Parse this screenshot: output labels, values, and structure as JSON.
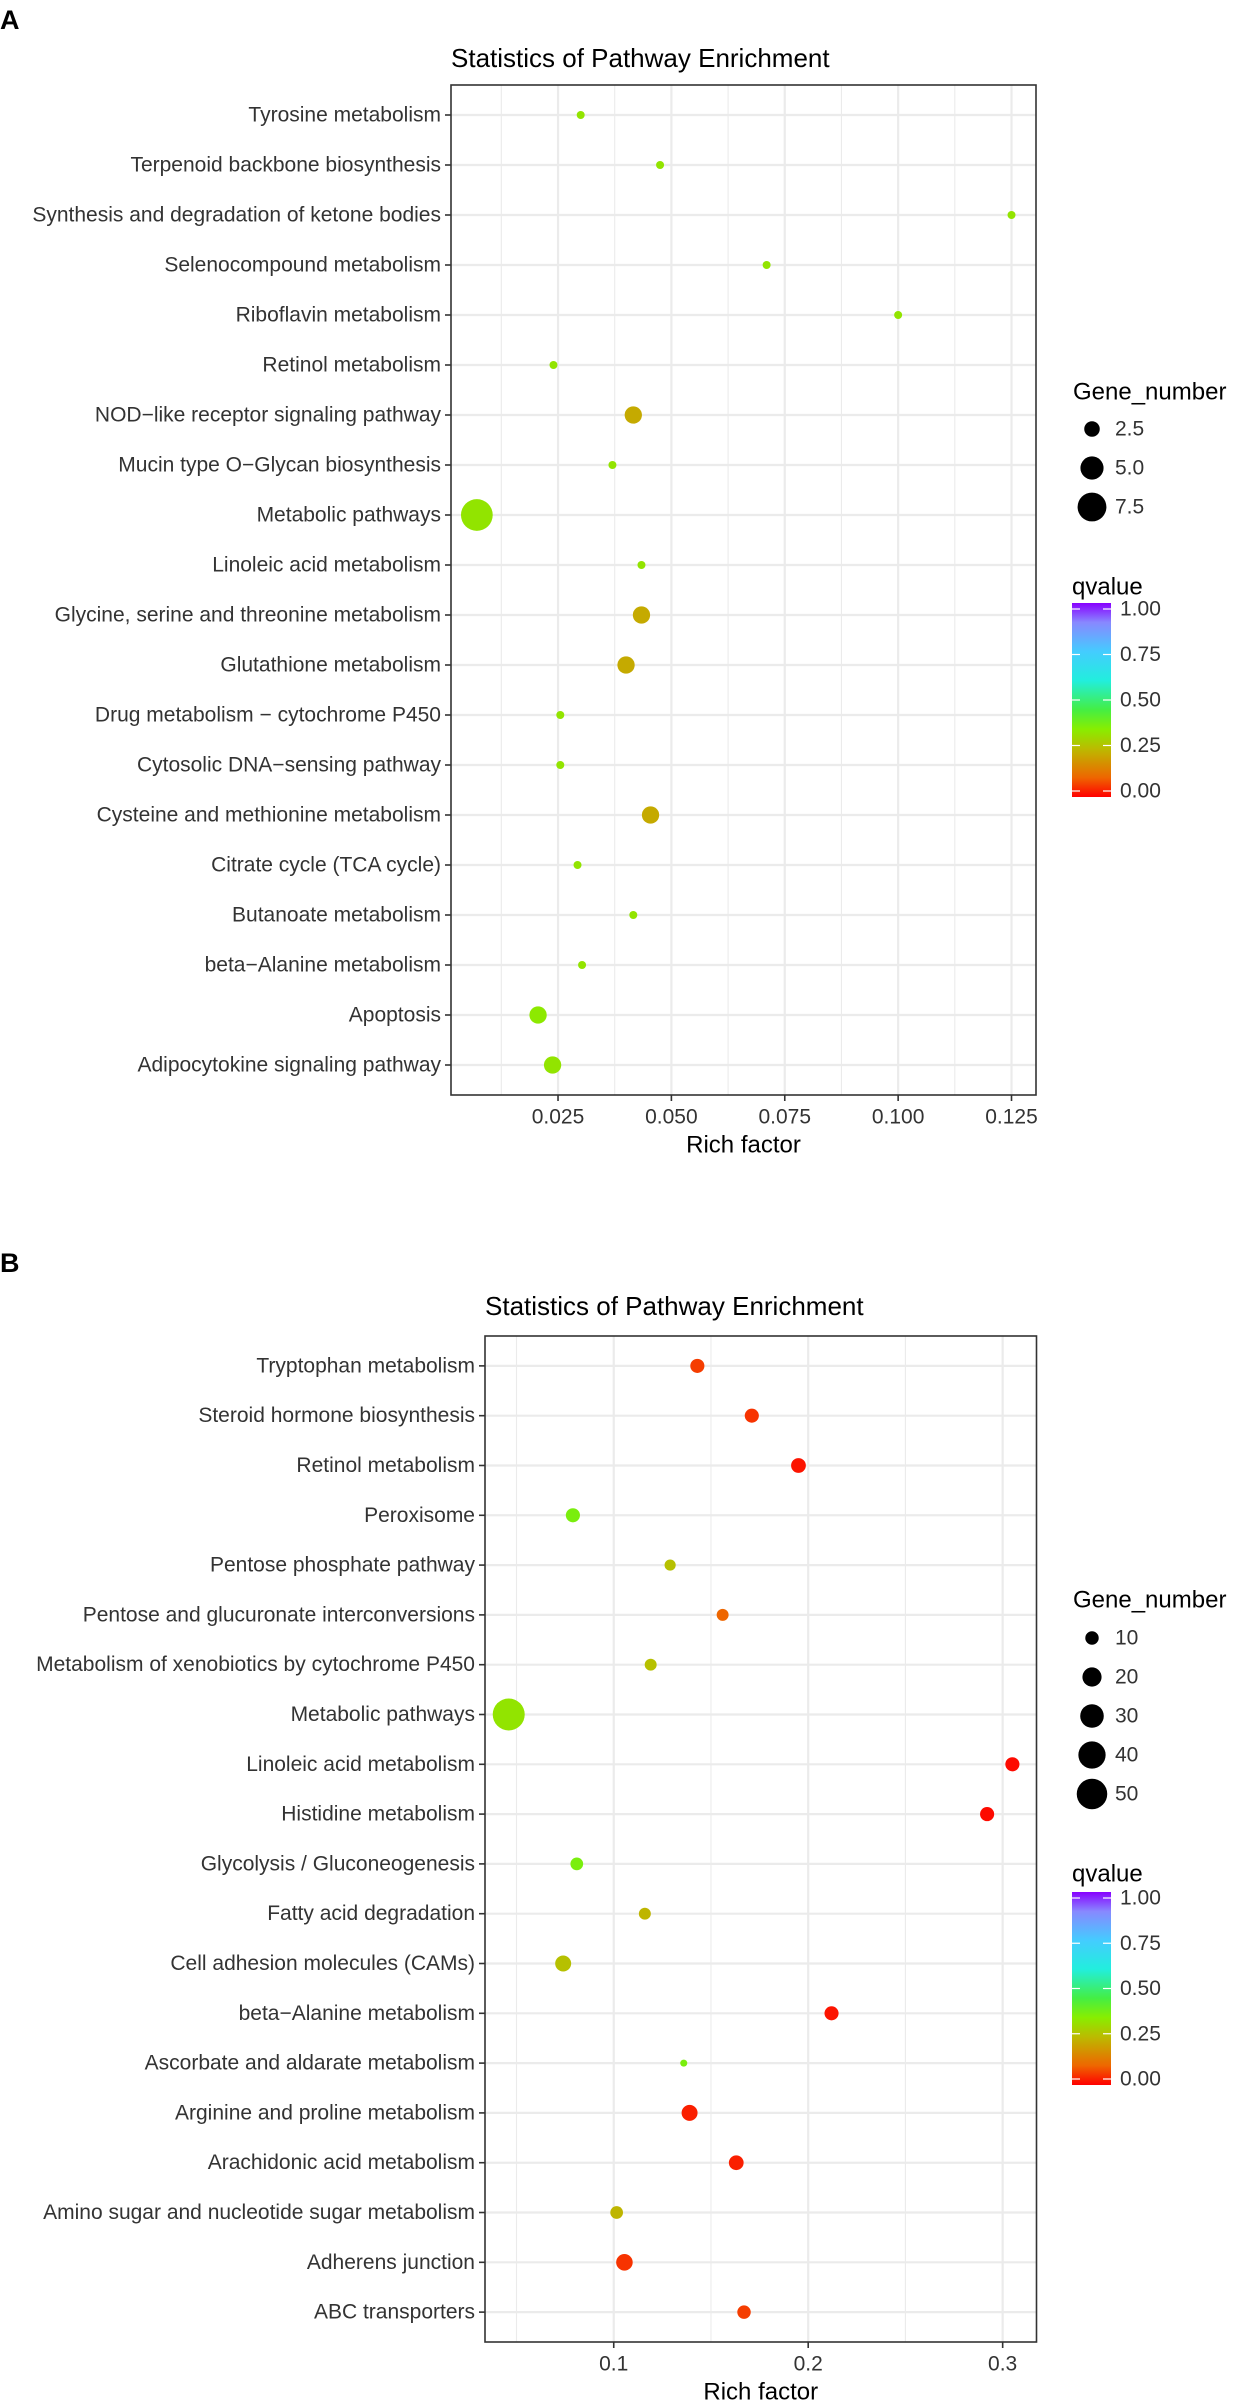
{
  "figure_labels": [
    "A",
    "B"
  ],
  "color_scale": {
    "stops": [
      {
        "q": 0.0,
        "color": "#FF0000"
      },
      {
        "q": 0.1,
        "color": "#EE6600"
      },
      {
        "q": 0.25,
        "color": "#BBBB00"
      },
      {
        "q": 0.35,
        "color": "#88EE00"
      },
      {
        "q": 0.45,
        "color": "#44EE44"
      },
      {
        "q": 0.6,
        "color": "#22EEDD"
      },
      {
        "q": 0.75,
        "color": "#44CCFF"
      },
      {
        "q": 0.9,
        "color": "#8888FF"
      },
      {
        "q": 1.0,
        "color": "#8800FF"
      }
    ]
  },
  "chart_data": [
    {
      "type": "scatter",
      "panel": "A",
      "title": "Statistics of Pathway Enrichment",
      "xlabel": "Rich factor",
      "ylabel": "",
      "xlim": [
        0.0014,
        0.1304
      ],
      "xticks": [
        0.025,
        0.05,
        0.075,
        0.1,
        0.125
      ],
      "xtick_labels": [
        "0.025",
        "0.050",
        "0.075",
        "0.100",
        "0.125"
      ],
      "grid": true,
      "legend_position": "right",
      "points": [
        {
          "pathway": "Tyrosine metabolism",
          "rich_factor": 0.03,
          "gene_number": 1,
          "qvalue": 0.33
        },
        {
          "pathway": "Terpenoid backbone biosynthesis",
          "rich_factor": 0.0475,
          "gene_number": 1,
          "qvalue": 0.33
        },
        {
          "pathway": "Synthesis and degradation of ketone bodies",
          "rich_factor": 0.125,
          "gene_number": 1,
          "qvalue": 0.33
        },
        {
          "pathway": "Selenocompound metabolism",
          "rich_factor": 0.071,
          "gene_number": 1,
          "qvalue": 0.33
        },
        {
          "pathway": "Riboflavin metabolism",
          "rich_factor": 0.1,
          "gene_number": 1,
          "qvalue": 0.33
        },
        {
          "pathway": "Retinol metabolism",
          "rich_factor": 0.024,
          "gene_number": 1,
          "qvalue": 0.33
        },
        {
          "pathway": "NOD−like receptor signaling pathway",
          "rich_factor": 0.0416,
          "gene_number": 3,
          "qvalue": 0.22
        },
        {
          "pathway": "Mucin type O−Glycan biosynthesis",
          "rich_factor": 0.037,
          "gene_number": 1,
          "qvalue": 0.33
        },
        {
          "pathway": "Metabolic pathways",
          "rich_factor": 0.0071,
          "gene_number": 9,
          "qvalue": 0.33
        },
        {
          "pathway": "Linoleic acid metabolism",
          "rich_factor": 0.0434,
          "gene_number": 1,
          "qvalue": 0.33
        },
        {
          "pathway": "Glycine, serine and threonine metabolism",
          "rich_factor": 0.0434,
          "gene_number": 3,
          "qvalue": 0.22
        },
        {
          "pathway": "Glutathione metabolism",
          "rich_factor": 0.04,
          "gene_number": 3,
          "qvalue": 0.22
        },
        {
          "pathway": "Drug metabolism − cytochrome P450",
          "rich_factor": 0.0255,
          "gene_number": 1,
          "qvalue": 0.33
        },
        {
          "pathway": "Cytosolic DNA−sensing pathway",
          "rich_factor": 0.0255,
          "gene_number": 1,
          "qvalue": 0.33
        },
        {
          "pathway": "Cysteine and methionine metabolism",
          "rich_factor": 0.0454,
          "gene_number": 3,
          "qvalue": 0.22
        },
        {
          "pathway": "Citrate cycle (TCA cycle)",
          "rich_factor": 0.0293,
          "gene_number": 1,
          "qvalue": 0.33
        },
        {
          "pathway": "Butanoate metabolism",
          "rich_factor": 0.0416,
          "gene_number": 1,
          "qvalue": 0.33
        },
        {
          "pathway": "beta−Alanine metabolism",
          "rich_factor": 0.0303,
          "gene_number": 1,
          "qvalue": 0.33
        },
        {
          "pathway": "Apoptosis",
          "rich_factor": 0.0206,
          "gene_number": 3,
          "qvalue": 0.34
        },
        {
          "pathway": "Adipocytokine signaling pathway",
          "rich_factor": 0.0238,
          "gene_number": 3,
          "qvalue": 0.33
        }
      ],
      "size_legend": {
        "title": "Gene_number",
        "values": [
          2.5,
          5.0,
          7.5
        ],
        "labels": [
          "2.5",
          "5.0",
          "7.5"
        ]
      },
      "color_legend": {
        "title": "qvalue",
        "values": [
          1.0,
          0.75,
          0.5,
          0.25,
          0.0
        ],
        "labels": [
          "1.00",
          "0.75",
          "0.50",
          "0.25",
          "0.00"
        ]
      }
    },
    {
      "type": "scatter",
      "panel": "B",
      "title": "Statistics of Pathway Enrichment",
      "xlabel": "Rich factor",
      "ylabel": "",
      "xlim": [
        0.0338,
        0.3174
      ],
      "xticks": [
        0.1,
        0.2,
        0.3
      ],
      "xtick_labels": [
        "0.1",
        "0.2",
        "0.3"
      ],
      "grid": true,
      "legend_position": "right",
      "points": [
        {
          "pathway": "Tryptophan metabolism",
          "rich_factor": 0.143,
          "gene_number": 11,
          "qvalue": 0.06
        },
        {
          "pathway": "Steroid hormone biosynthesis",
          "rich_factor": 0.171,
          "gene_number": 11,
          "qvalue": 0.05
        },
        {
          "pathway": "Retinol metabolism",
          "rich_factor": 0.195,
          "gene_number": 12,
          "qvalue": 0.02
        },
        {
          "pathway": "Peroxisome",
          "rich_factor": 0.079,
          "gene_number": 11,
          "qvalue": 0.37
        },
        {
          "pathway": "Pentose phosphate pathway",
          "rich_factor": 0.129,
          "gene_number": 7,
          "qvalue": 0.26
        },
        {
          "pathway": "Pentose and glucuronate interconversions",
          "rich_factor": 0.156,
          "gene_number": 8,
          "qvalue": 0.1
        },
        {
          "pathway": "Metabolism of xenobiotics by cytochrome P450",
          "rich_factor": 0.119,
          "gene_number": 8,
          "qvalue": 0.26
        },
        {
          "pathway": "Metabolic pathways",
          "rich_factor": 0.046,
          "gene_number": 55,
          "qvalue": 0.33
        },
        {
          "pathway": "Linoleic acid metabolism",
          "rich_factor": 0.305,
          "gene_number": 11,
          "qvalue": 0.01
        },
        {
          "pathway": "Histidine metabolism",
          "rich_factor": 0.292,
          "gene_number": 11,
          "qvalue": 0.01
        },
        {
          "pathway": "Glycolysis / Gluconeogenesis",
          "rich_factor": 0.081,
          "gene_number": 9,
          "qvalue": 0.37
        },
        {
          "pathway": "Fatty acid degradation",
          "rich_factor": 0.116,
          "gene_number": 8,
          "qvalue": 0.24
        },
        {
          "pathway": "Cell adhesion molecules (CAMs)",
          "rich_factor": 0.074,
          "gene_number": 14,
          "qvalue": 0.26
        },
        {
          "pathway": "beta−Alanine metabolism",
          "rich_factor": 0.212,
          "gene_number": 11,
          "qvalue": 0.02
        },
        {
          "pathway": "Ascorbate and aldarate metabolism",
          "rich_factor": 0.136,
          "gene_number": 3,
          "qvalue": 0.37
        },
        {
          "pathway": "Arginine and proline metabolism",
          "rich_factor": 0.139,
          "gene_number": 14,
          "qvalue": 0.03
        },
        {
          "pathway": "Arachidonic acid metabolism",
          "rich_factor": 0.163,
          "gene_number": 12,
          "qvalue": 0.03
        },
        {
          "pathway": "Amino sugar and nucleotide sugar metabolism",
          "rich_factor": 0.1015,
          "gene_number": 9,
          "qvalue": 0.24
        },
        {
          "pathway": "Adherens junction",
          "rich_factor": 0.1055,
          "gene_number": 15,
          "qvalue": 0.05
        },
        {
          "pathway": "ABC transporters",
          "rich_factor": 0.167,
          "gene_number": 10,
          "qvalue": 0.06
        }
      ],
      "size_legend": {
        "title": "Gene_number",
        "values": [
          10,
          20,
          30,
          40,
          50
        ],
        "labels": [
          "10",
          "20",
          "30",
          "40",
          "50"
        ]
      },
      "color_legend": {
        "title": "qvalue",
        "values": [
          1.0,
          0.75,
          0.5,
          0.25,
          0.0
        ],
        "labels": [
          "1.00",
          "0.75",
          "0.50",
          "0.25",
          "0.00"
        ]
      }
    }
  ]
}
